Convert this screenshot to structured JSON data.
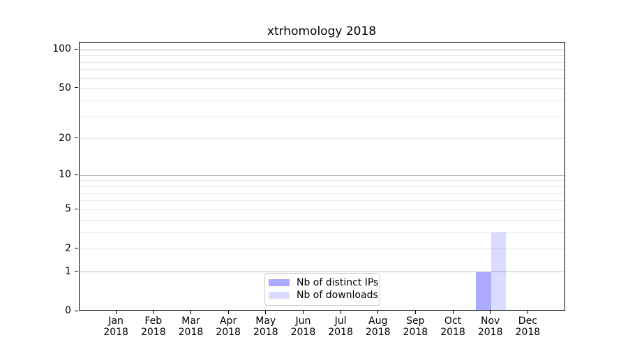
{
  "figure": {
    "background": "#ffffff",
    "text_color": "#000000"
  },
  "chart_data": {
    "type": "bar",
    "title": "xtrhomology 2018",
    "xlabel": "",
    "ylabel": "",
    "x_tick_months": [
      "Jan",
      "Feb",
      "Mar",
      "Apr",
      "May",
      "Jun",
      "Jul",
      "Aug",
      "Sep",
      "Oct",
      "Nov",
      "Dec"
    ],
    "x_tick_year": "2018",
    "categories": [
      "Jan 2018",
      "Feb 2018",
      "Mar 2018",
      "Apr 2018",
      "May 2018",
      "Jun 2018",
      "Jul 2018",
      "Aug 2018",
      "Sep 2018",
      "Oct 2018",
      "Nov 2018",
      "Dec 2018"
    ],
    "series": [
      {
        "name": "Nb of distinct IPs",
        "color": "rgba(0,0,255,0.33)",
        "color_hex_on_white": "#aaaaff",
        "values": [
          0,
          0,
          0,
          0,
          0,
          0,
          0,
          0,
          0,
          0,
          1,
          0
        ]
      },
      {
        "name": "Nb of downloads",
        "color": "rgba(0,0,255,0.14)",
        "color_hex_on_white": "#dcdcff",
        "values": [
          0,
          0,
          0,
          0,
          0,
          0,
          0,
          0,
          0,
          0,
          3,
          0
        ]
      }
    ],
    "yscale": "log1p",
    "ylim": [
      0,
      113.4
    ],
    "xlim": [
      -1,
      12
    ],
    "y_ticks": [
      {
        "value": 100,
        "label": "100"
      },
      {
        "value": 50,
        "label": "50"
      },
      {
        "value": 20,
        "label": "20"
      },
      {
        "value": 10,
        "label": "10"
      },
      {
        "value": 5,
        "label": "5"
      },
      {
        "value": 2,
        "label": "2"
      },
      {
        "value": 1,
        "label": "1"
      },
      {
        "value": 0,
        "label": "0"
      }
    ],
    "gridlines": {
      "major": [
        1,
        10,
        100
      ],
      "minor": [
        2,
        3,
        4,
        5,
        6,
        7,
        8,
        9,
        20,
        30,
        40,
        50,
        60,
        70,
        80,
        90
      ]
    },
    "bar_width_fraction": 0.4,
    "legend": {
      "position": "lower-center",
      "entries": [
        "Nb of distinct IPs",
        "Nb of downloads"
      ]
    },
    "grid": "on"
  },
  "colors": {
    "spine": "#000000",
    "grid_major": "#bcbcbc",
    "grid_minor": "#e7e7e7",
    "legend_border": "#cbcbcb",
    "bar_distinct_ips": "#aaaaff",
    "bar_downloads": "#dcdcff"
  }
}
